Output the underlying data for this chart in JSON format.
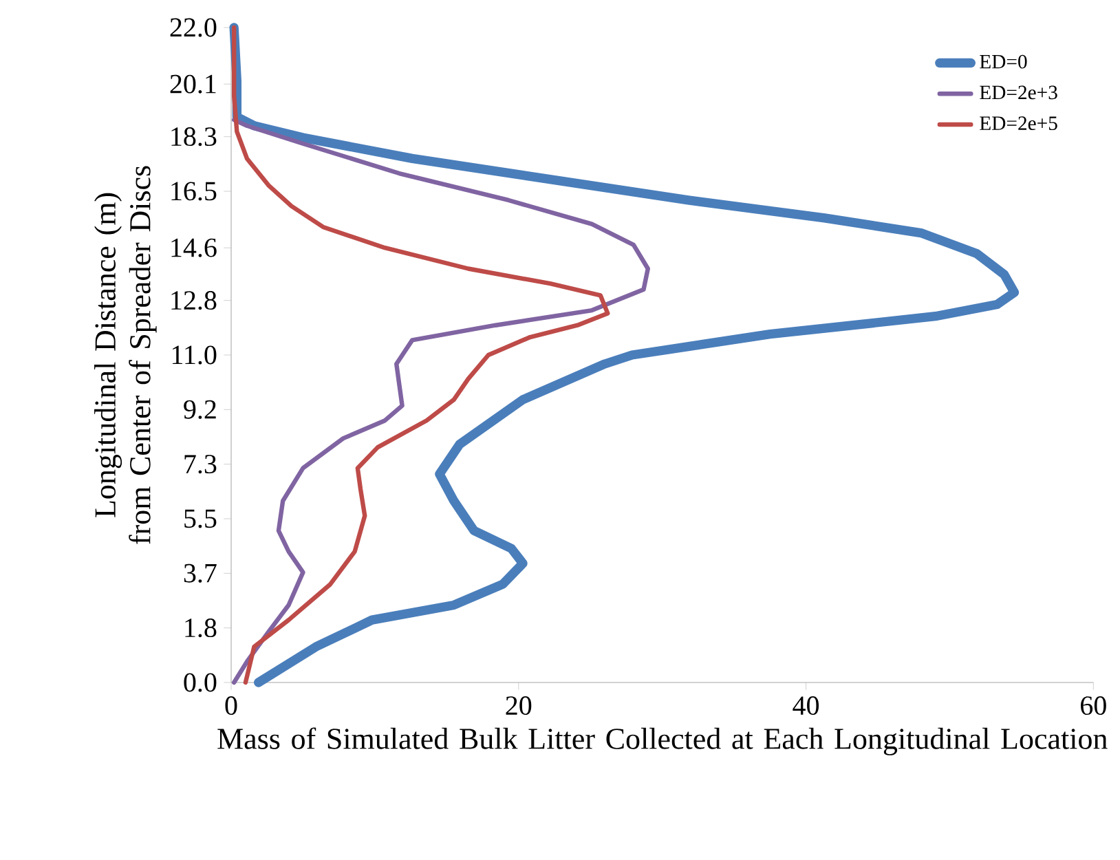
{
  "chart_data": {
    "type": "line",
    "xlabel": "Mass of Simulated Bulk Litter Collected at Each Longitudinal Location",
    "ylabel": "Longitudinal Distance (m) from Center of Spreader Discs",
    "xlim": [
      0,
      60
    ],
    "xticks": [
      0,
      20,
      40,
      60
    ],
    "ylim": [
      0,
      22
    ],
    "yticks": [
      {
        "value": 0,
        "label": "0.0"
      },
      {
        "value": 1.833,
        "label": "1.8"
      },
      {
        "value": 3.667,
        "label": "3.7"
      },
      {
        "value": 5.5,
        "label": "5.5"
      },
      {
        "value": 7.333,
        "label": "7.3"
      },
      {
        "value": 9.167,
        "label": "9.2"
      },
      {
        "value": 11,
        "label": "11.0"
      },
      {
        "value": 12.833,
        "label": "12.8"
      },
      14.6,
      {
        "value": 16.5,
        "label": "16.5"
      },
      {
        "value": 18.333,
        "label": "18.3"
      },
      20.1,
      {
        "value": 22,
        "label": "22.0"
      }
    ],
    "grid": false,
    "legend": "top right",
    "marker": "none",
    "line_style": "solid",
    "series": [
      {
        "name": "ED=0",
        "color": "#4a7ebb",
        "x": [
          1.9,
          5.9,
          9.8,
          15.5,
          18.9,
          20.3,
          19.5,
          16.9,
          15.5,
          14.5,
          15.9,
          20.3,
          26.0,
          27.9,
          37.5,
          49.0,
          53.3,
          54.5,
          53.8,
          51.9,
          48.0,
          41.3,
          31.8,
          22.2,
          12.6,
          5.0,
          1.6,
          0.4,
          0.4,
          0.2
        ],
        "values": [
          0,
          1.2,
          2.1,
          2.6,
          3.3,
          4.0,
          4.5,
          5.1,
          6.1,
          7.0,
          8.0,
          9.5,
          10.7,
          11.0,
          11.7,
          12.3,
          12.7,
          13.1,
          13.7,
          14.4,
          15.1,
          15.6,
          16.2,
          16.9,
          17.6,
          18.3,
          18.7,
          19.0,
          20.2,
          22.0
        ]
      },
      {
        "name": "ED=2e+3",
        "color": "#8064a2",
        "x": [
          0.2,
          1.1,
          2.6,
          4.0,
          5.0,
          4.0,
          3.3,
          3.6,
          5.0,
          7.8,
          10.7,
          11.9,
          11.7,
          11.5,
          12.6,
          18.4,
          25.1,
          28.7,
          29.0,
          28.0,
          25.1,
          19.3,
          11.7,
          5.0,
          1.1,
          0.2
        ],
        "values": [
          0,
          0.7,
          1.7,
          2.6,
          3.7,
          4.4,
          5.1,
          6.1,
          7.2,
          8.2,
          8.8,
          9.3,
          10.0,
          10.7,
          11.5,
          12.0,
          12.5,
          13.2,
          13.9,
          14.7,
          15.4,
          16.2,
          17.1,
          18.1,
          18.7,
          18.9
        ]
      },
      {
        "name": "ED=2e+5",
        "color": "#be4b48",
        "x": [
          1.0,
          1.6,
          4.0,
          6.9,
          8.6,
          9.3,
          9.0,
          8.8,
          10.2,
          13.6,
          15.5,
          16.5,
          17.9,
          20.8,
          24.1,
          26.2,
          25.7,
          22.2,
          16.5,
          10.7,
          6.4,
          4.2,
          2.6,
          1.1,
          0.4,
          0.2,
          0.2
        ],
        "values": [
          0,
          1.2,
          2.1,
          3.3,
          4.4,
          5.6,
          6.5,
          7.2,
          7.9,
          8.8,
          9.5,
          10.2,
          11.0,
          11.6,
          12.0,
          12.4,
          13.0,
          13.4,
          13.9,
          14.6,
          15.3,
          16.0,
          16.7,
          17.6,
          18.5,
          19.7,
          22.0
        ]
      }
    ]
  }
}
